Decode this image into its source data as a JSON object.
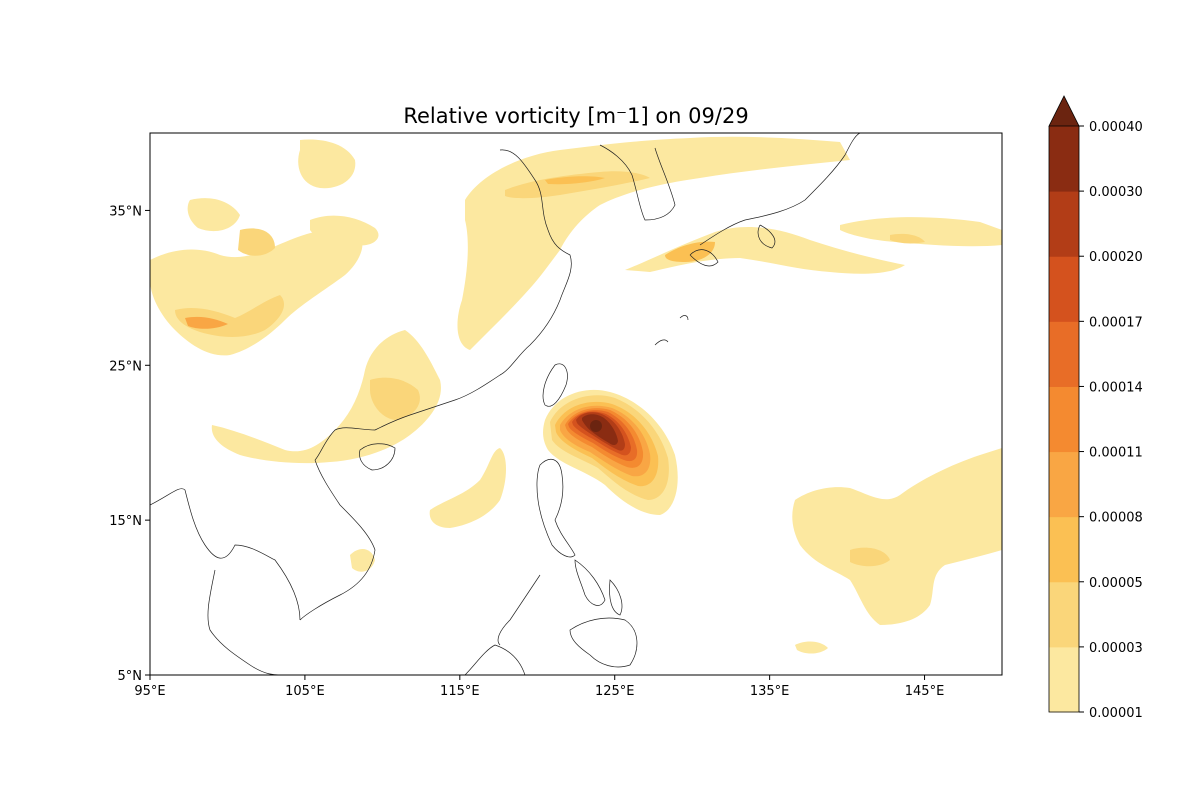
{
  "title": "Relative vorticity [m⁻1] on 09/29",
  "map": {
    "lon_range": [
      95,
      150
    ],
    "lat_range": [
      5,
      40
    ],
    "x_ticks": [
      "95°E",
      "105°E",
      "115°E",
      "125°E",
      "135°E",
      "145°E"
    ],
    "y_ticks": [
      "5°N",
      "15°N",
      "25°N",
      "35°N"
    ],
    "x_tick_values": [
      95,
      105,
      115,
      125,
      135,
      145
    ],
    "y_tick_values": [
      5,
      15,
      25,
      35
    ]
  },
  "colorbar": {
    "levels": [
      "0.00001",
      "0.00003",
      "0.00005",
      "0.00008",
      "0.00011",
      "0.00014",
      "0.00017",
      "0.00020",
      "0.00030",
      "0.00040"
    ],
    "colors": [
      "#fce8a0",
      "#fad67a",
      "#fbc053",
      "#f9a644",
      "#f48a30",
      "#e86d27",
      "#d4521e",
      "#b23d17",
      "#8a2c12"
    ],
    "extend": "max",
    "extend_color": "#6b2410"
  },
  "colors": {
    "coastline": "#222222",
    "frame": "#000000"
  }
}
